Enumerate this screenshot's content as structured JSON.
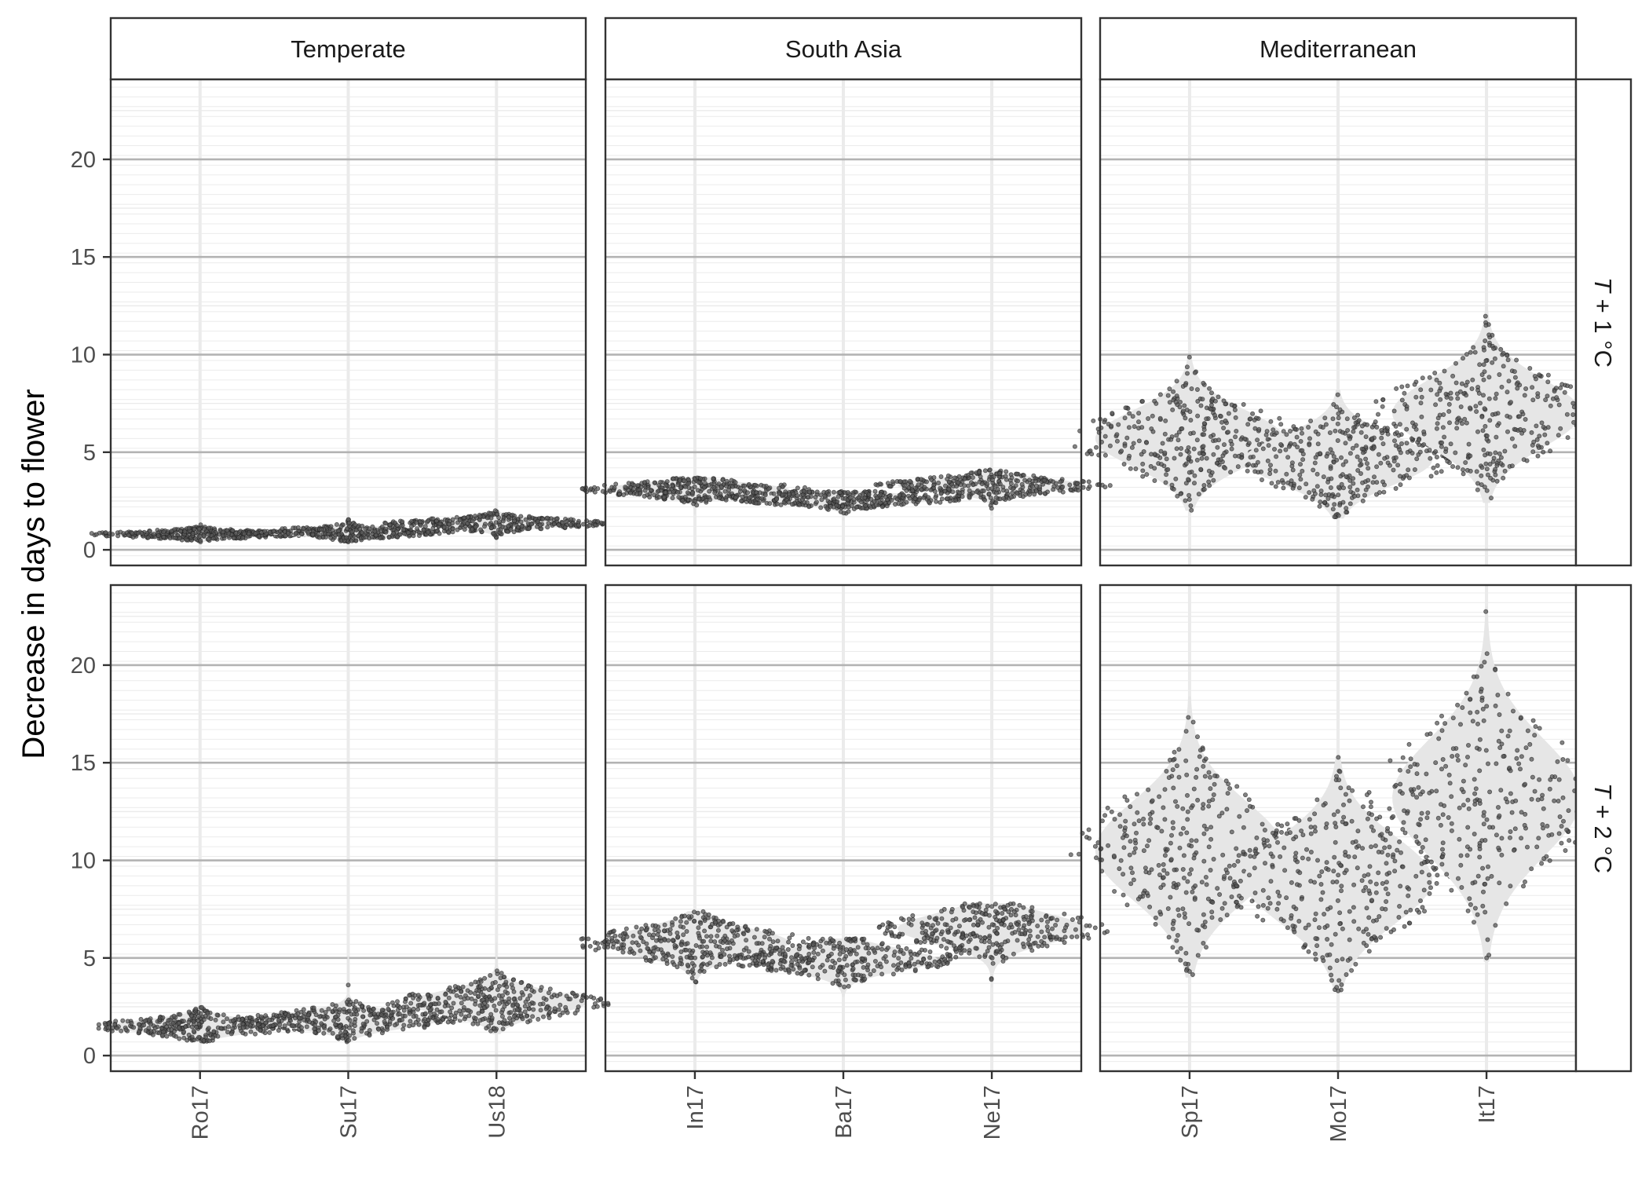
{
  "chart_data": {
    "type": "scatter",
    "style": "faceted beeswarm over violin",
    "ylabel": "Decrease in days to flower",
    "yticks": [
      0,
      5,
      10,
      15,
      20
    ],
    "ylim": [
      -0.8,
      24.1
    ],
    "grid": true,
    "columns": [
      {
        "label": "Temperate",
        "categories": [
          "Ro17",
          "Su17",
          "Us18"
        ]
      },
      {
        "label": "South Asia",
        "categories": [
          "In17",
          "Ba17",
          "Ne17"
        ]
      },
      {
        "label": "Mediterranean",
        "categories": [
          "Sp17",
          "Mo17",
          "It17"
        ]
      }
    ],
    "rows": [
      {
        "label_italic": "T",
        "label_rest": " + 1 °C"
      },
      {
        "label_italic": "T",
        "label_rest": " + 2 °C"
      }
    ],
    "groups": [
      {
        "row": 0,
        "col": 0,
        "cat": 0,
        "center": 0.8,
        "spread": 0.4,
        "min": 0.4,
        "max": 2.1,
        "halfwidth": 0.4
      },
      {
        "row": 0,
        "col": 0,
        "cat": 1,
        "center": 0.9,
        "spread": 0.5,
        "min": 0.4,
        "max": 2.7,
        "halfwidth": 0.4
      },
      {
        "row": 0,
        "col": 0,
        "cat": 2,
        "center": 1.35,
        "spread": 0.6,
        "min": 0.6,
        "max": 3.0,
        "halfwidth": 0.4
      },
      {
        "row": 0,
        "col": 1,
        "cat": 0,
        "center": 3.1,
        "spread": 0.8,
        "min": 1.8,
        "max": 3.7,
        "halfwidth": 0.42
      },
      {
        "row": 0,
        "col": 1,
        "cat": 1,
        "center": 2.6,
        "spread": 0.7,
        "min": 1.5,
        "max": 3.0,
        "halfwidth": 0.42
      },
      {
        "row": 0,
        "col": 1,
        "cat": 2,
        "center": 3.3,
        "spread": 0.9,
        "min": 1.8,
        "max": 4.1,
        "halfwidth": 0.42
      },
      {
        "row": 0,
        "col": 2,
        "cat": 0,
        "center": 5.7,
        "spread": 3.7,
        "min": 2.0,
        "max": 9.9,
        "halfwidth": 0.42
      },
      {
        "row": 0,
        "col": 2,
        "cat": 1,
        "center": 4.6,
        "spread": 3.2,
        "min": 1.6,
        "max": 8.2,
        "halfwidth": 0.42
      },
      {
        "row": 0,
        "col": 2,
        "cat": 2,
        "center": 7.0,
        "spread": 4.5,
        "min": 2.4,
        "max": 12.6,
        "halfwidth": 0.42
      },
      {
        "row": 1,
        "col": 0,
        "cat": 0,
        "center": 1.5,
        "spread": 0.9,
        "min": 0.7,
        "max": 4.1,
        "halfwidth": 0.4
      },
      {
        "row": 1,
        "col": 0,
        "cat": 1,
        "center": 1.8,
        "spread": 1.1,
        "min": 0.7,
        "max": 5.1,
        "halfwidth": 0.4
      },
      {
        "row": 1,
        "col": 0,
        "cat": 2,
        "center": 2.7,
        "spread": 1.6,
        "min": 1.1,
        "max": 5.8,
        "halfwidth": 0.4
      },
      {
        "row": 1,
        "col": 1,
        "cat": 0,
        "center": 5.8,
        "spread": 1.8,
        "min": 3.5,
        "max": 7.4,
        "halfwidth": 0.42
      },
      {
        "row": 1,
        "col": 1,
        "cat": 1,
        "center": 4.9,
        "spread": 1.5,
        "min": 3.0,
        "max": 6.0,
        "halfwidth": 0.42
      },
      {
        "row": 1,
        "col": 1,
        "cat": 2,
        "center": 6.5,
        "spread": 2.0,
        "min": 3.5,
        "max": 7.8,
        "halfwidth": 0.42
      },
      {
        "row": 1,
        "col": 2,
        "cat": 0,
        "center": 10.5,
        "spread": 6.5,
        "min": 4.0,
        "max": 18.4,
        "halfwidth": 0.42
      },
      {
        "row": 1,
        "col": 2,
        "cat": 1,
        "center": 9.0,
        "spread": 5.8,
        "min": 3.3,
        "max": 15.3,
        "halfwidth": 0.42
      },
      {
        "row": 1,
        "col": 2,
        "cat": 2,
        "center": 13.2,
        "spread": 7.8,
        "min": 4.8,
        "max": 23.0,
        "halfwidth": 0.42
      }
    ],
    "colors": {
      "point_fill": "#5a5a5a",
      "point_stroke": "#1a1a1a",
      "violin": "#e6e6e6",
      "grid_major": "#b3b3b3",
      "grid_minor": "#ebebeb",
      "panel_border": "#333333",
      "strip_fill": "#ffffff"
    }
  }
}
